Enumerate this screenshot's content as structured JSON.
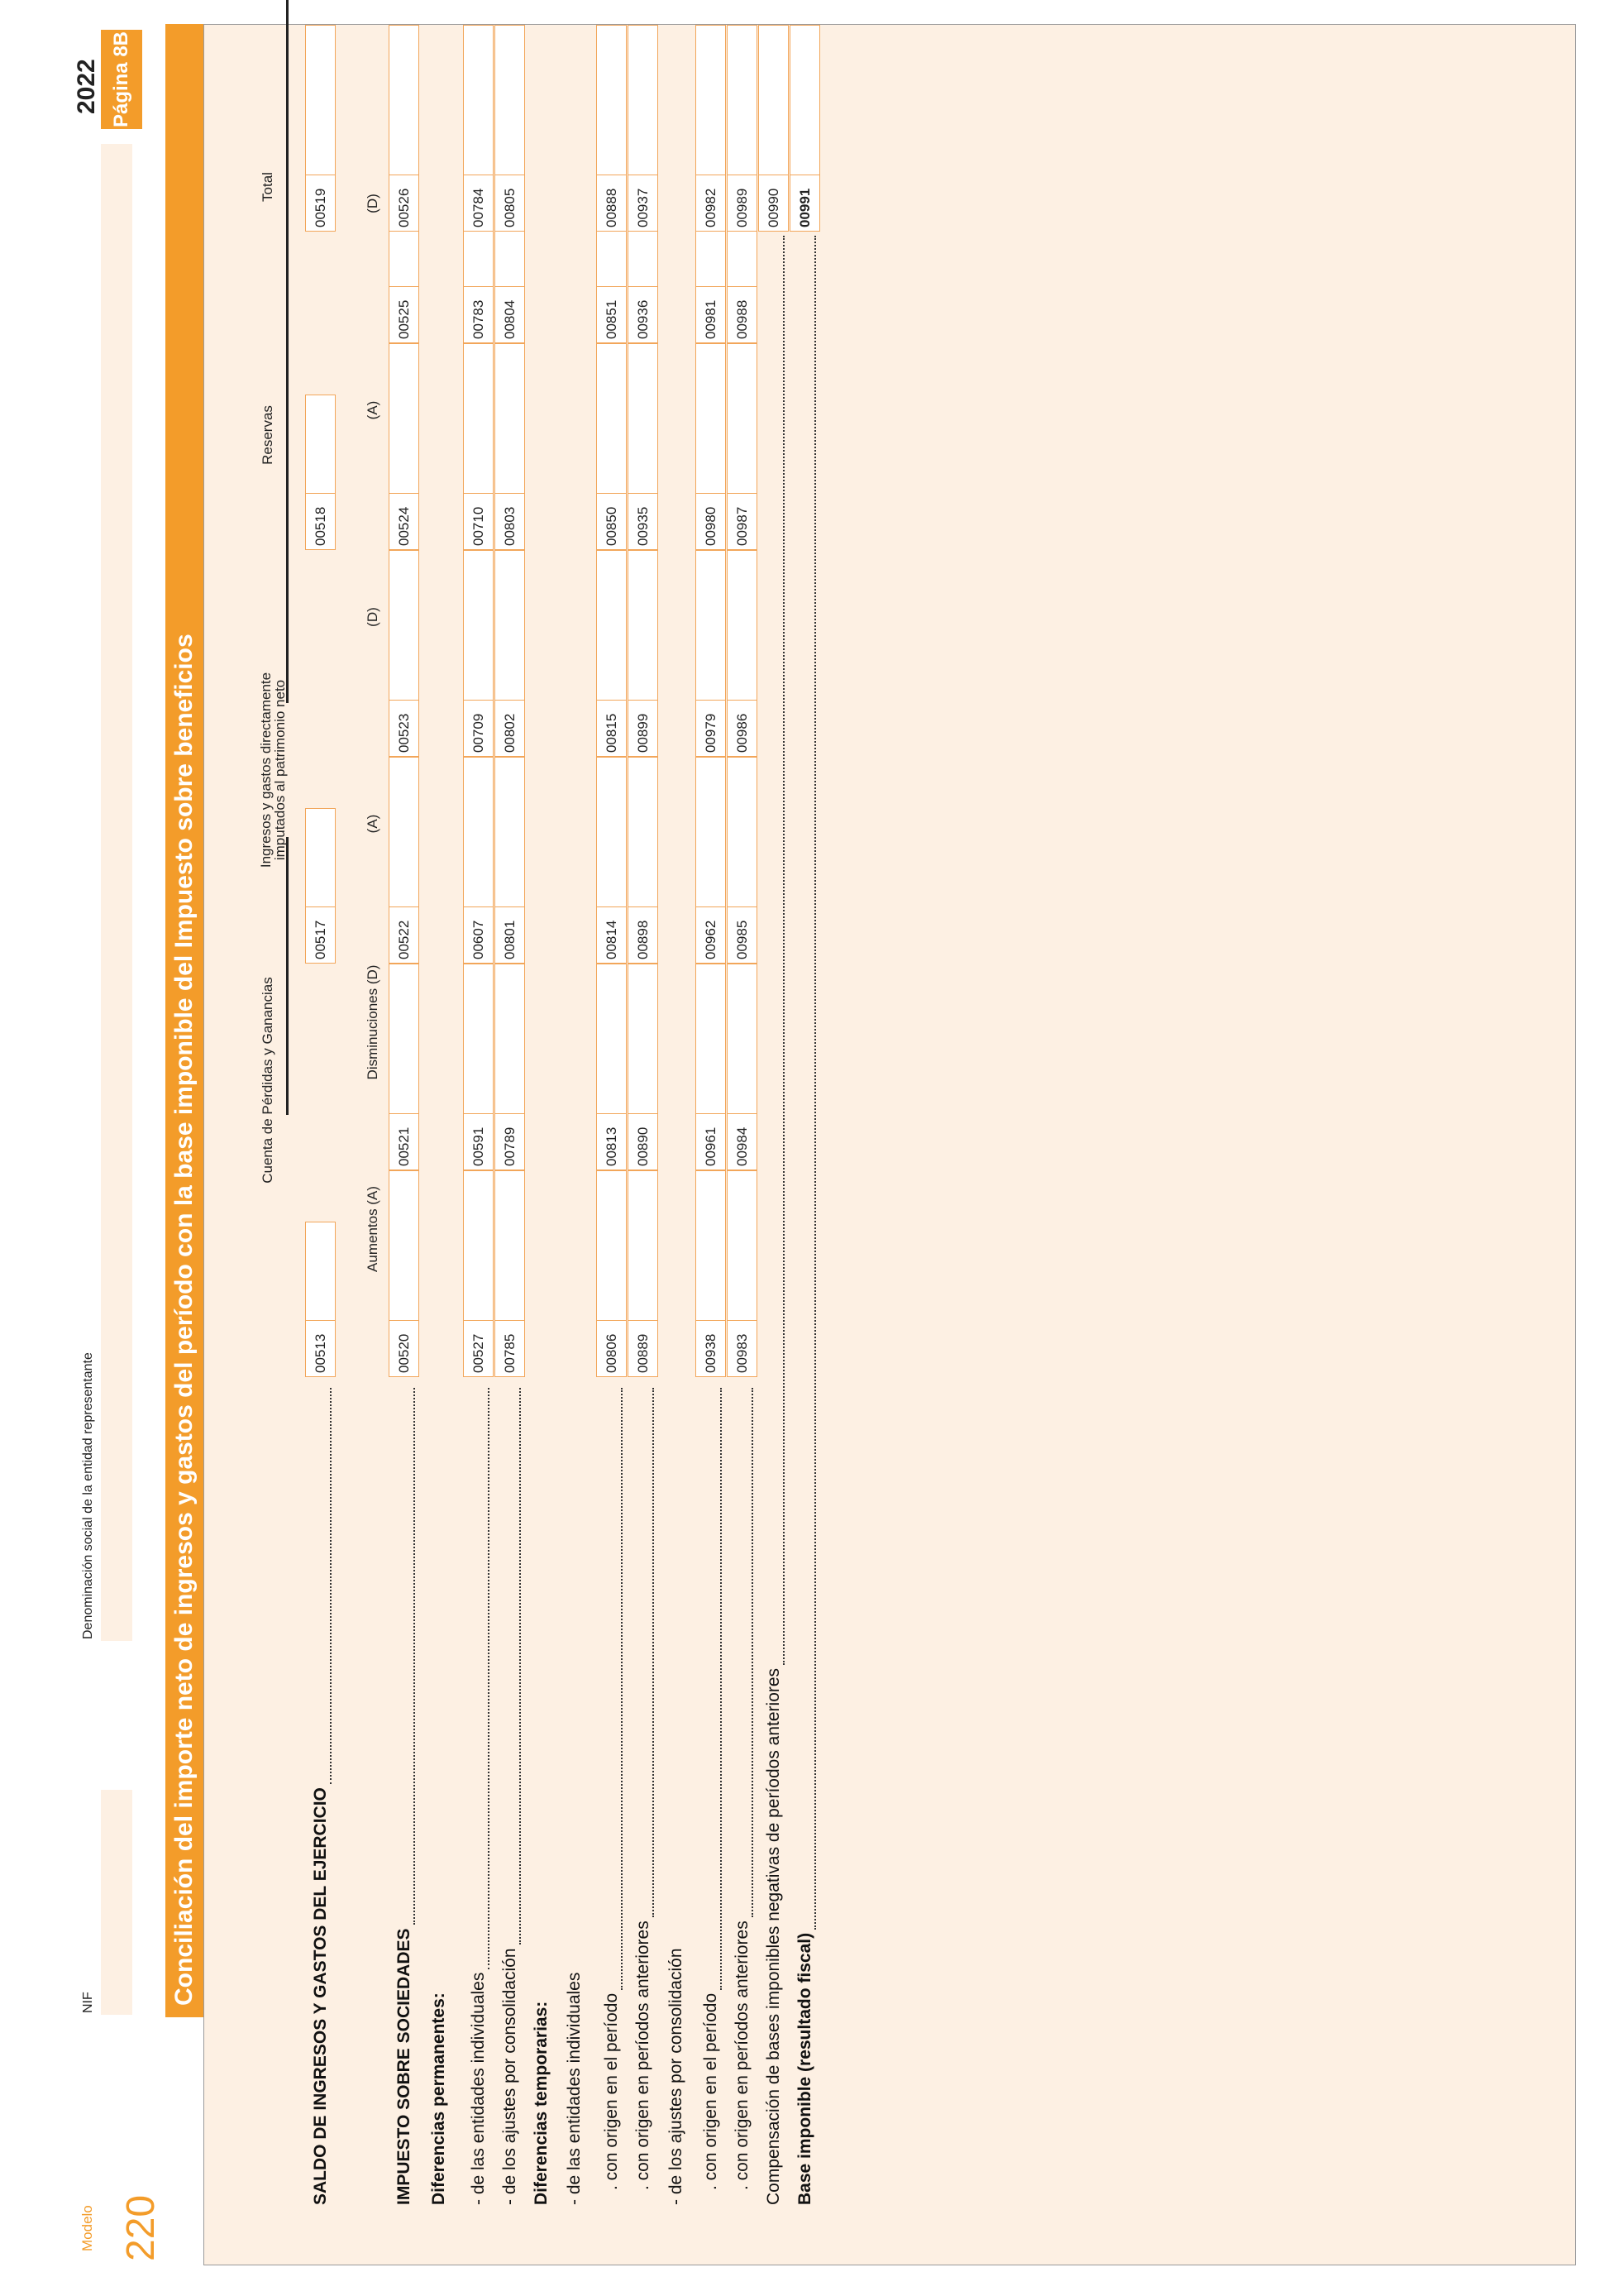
{
  "header": {
    "modelo_label": "Modelo",
    "modelo_number": "220",
    "nif_label": "NIF",
    "denominacion_label": "Denominación social de la entidad representante",
    "year": "2022",
    "page_label": "Página 8B"
  },
  "title": "Conciliación del importe neto de ingresos y gastos del período con la base imponible del Impuesto sobre beneficios",
  "columns": {
    "group1": "Cuenta de Pérdidas y Ganancias",
    "group2_line1": "Ingresos y gastos directamente",
    "group2_line2": "imputados al patrimonio neto",
    "group3": "Reservas",
    "group4": "Total",
    "aumentos": "Aumentos (A)",
    "disminuciones": "Disminuciones (D)",
    "a": "(A)",
    "d": "(D)"
  },
  "rows": {
    "saldo": {
      "label": "SALDO DE INGRESOS Y GASTOS DEL EJERCICIO",
      "codes": [
        "00513",
        "00517",
        "00518",
        "00519"
      ]
    },
    "impuesto": {
      "label": "IMPUESTO SOBRE SOCIEDADES",
      "codes": [
        "00520",
        "00521",
        "00522",
        "00523",
        "00524",
        "00525",
        "00526"
      ]
    },
    "dif_perm": {
      "label": "Diferencias permanentes:"
    },
    "perm_ind": {
      "label": "- de las entidades individuales",
      "codes": [
        "00527",
        "00591",
        "00607",
        "00709",
        "00710",
        "00783",
        "00784"
      ]
    },
    "perm_cons": {
      "label": "- de los ajustes por consolidación",
      "codes": [
        "00785",
        "00789",
        "00801",
        "00802",
        "00803",
        "00804",
        "00805"
      ]
    },
    "dif_temp": {
      "label": "Diferencias temporarias:"
    },
    "temp_ind": {
      "label": "- de las entidades individuales"
    },
    "temp_ind_per": {
      "label": ". con origen en el período",
      "codes": [
        "00806",
        "00813",
        "00814",
        "00815",
        "00850",
        "00851",
        "00888"
      ]
    },
    "temp_ind_ant": {
      "label": ". con origen en períodos anteriores",
      "codes": [
        "00889",
        "00890",
        "00898",
        "00899",
        "00935",
        "00936",
        "00937"
      ]
    },
    "temp_cons": {
      "label": "- de los ajustes por consolidación"
    },
    "temp_cons_per": {
      "label": ". con origen en el período",
      "codes": [
        "00938",
        "00961",
        "00962",
        "00979",
        "00980",
        "00981",
        "00982"
      ]
    },
    "temp_cons_ant": {
      "label": ". con origen en períodos anteriores",
      "codes": [
        "00983",
        "00984",
        "00985",
        "00986",
        "00987",
        "00988",
        "00989"
      ]
    },
    "compensacion": {
      "label": "Compensación de bases imponibles negativas de períodos anteriores",
      "codes": [
        "00990"
      ]
    },
    "base": {
      "label": "Base imponible (resultado fiscal)",
      "codes": [
        "00991"
      ]
    }
  }
}
